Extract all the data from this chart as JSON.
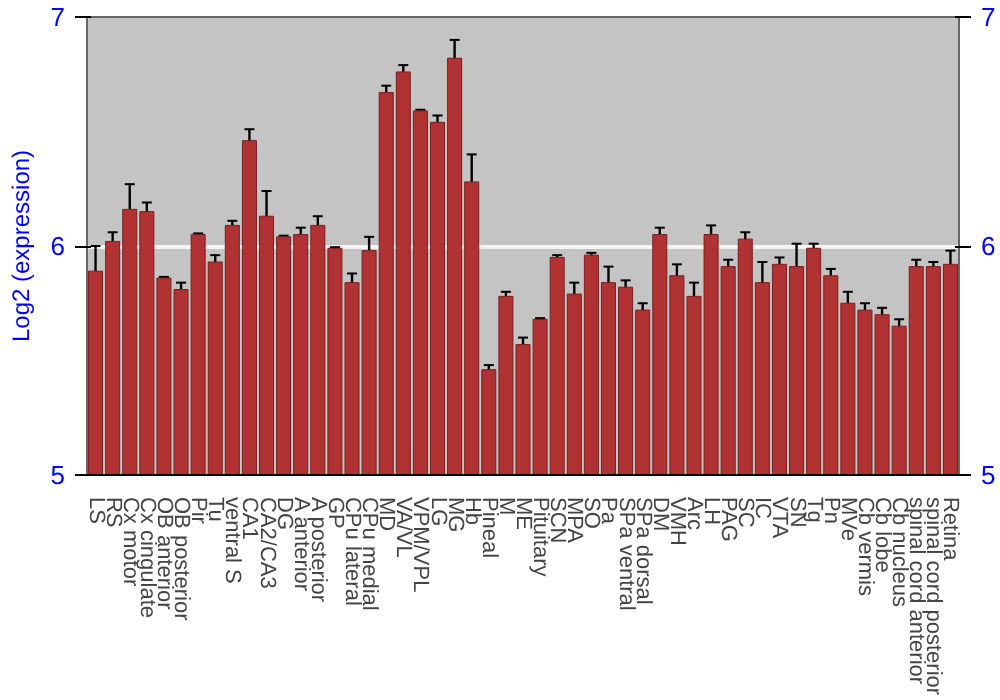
{
  "chart_data": {
    "type": "bar",
    "ylabel": "Log2 (expression)",
    "categories": [
      "LS",
      "RS",
      "Cx motor",
      "Cx cingulate",
      "OB anterior",
      "OB posterior",
      "Pir",
      "Tu",
      "ventral S",
      "CA1",
      "CA2/CA3",
      "DG",
      "A anterior",
      "A posterior",
      "GP",
      "CPu lateral",
      "CPu medial",
      "MD",
      "VA/VL",
      "VPM/VPL",
      "LG",
      "MG",
      "Hb",
      "Pineal",
      "M",
      "ME",
      "Pituitary",
      "SCN",
      "MPA",
      "SO",
      "Pa",
      "SPa ventral",
      "SPa dorsal",
      "DM",
      "VMH",
      "Arc",
      "LH",
      "PAG",
      "SC",
      "IC",
      "VTA",
      "SN",
      "Tg",
      "Pn",
      "MVe",
      "Cb vermis",
      "Cb lobe",
      "Cb nucleus",
      "spinal cord anterior",
      "spinal cord posterior",
      "Retina"
    ],
    "series": [
      {
        "color": "#b03232",
        "values": [
          5.89,
          6.02,
          6.16,
          6.15,
          5.86,
          5.81,
          6.05,
          5.93,
          6.09,
          6.46,
          6.13,
          6.04,
          6.05,
          6.09,
          5.99,
          5.84,
          5.98,
          6.67,
          6.76,
          6.59,
          6.54,
          6.82,
          6.28,
          5.46,
          5.78,
          5.57,
          5.68,
          5.95,
          5.79,
          5.96,
          5.84,
          5.82,
          5.72,
          6.05,
          5.87,
          5.78,
          6.05,
          5.91,
          6.03,
          5.84,
          5.92,
          5.91,
          5.99,
          5.87,
          5.75,
          5.72,
          5.7,
          5.65,
          5.91,
          5.91,
          5.92
        ],
        "errors": [
          0.11,
          0.04,
          0.11,
          0.04,
          0.005,
          0.03,
          0.005,
          0.03,
          0.02,
          0.05,
          0.11,
          0.005,
          0.03,
          0.04,
          0.005,
          0.04,
          0.06,
          0.03,
          0.03,
          0.005,
          0.03,
          0.08,
          0.12,
          0.02,
          0.02,
          0.03,
          0.005,
          0.01,
          0.05,
          0.01,
          0.07,
          0.03,
          0.03,
          0.03,
          0.05,
          0.06,
          0.04,
          0.03,
          0.03,
          0.09,
          0.03,
          0.1,
          0.02,
          0.03,
          0.05,
          0.03,
          0.03,
          0.03,
          0.03,
          0.02,
          0.06
        ]
      }
    ],
    "ylim": [
      5,
      7
    ],
    "yticks": [
      5,
      6,
      7
    ],
    "y2lim": [
      5,
      7
    ],
    "y2ticks": [
      5,
      6,
      7
    ],
    "grid": "y"
  }
}
